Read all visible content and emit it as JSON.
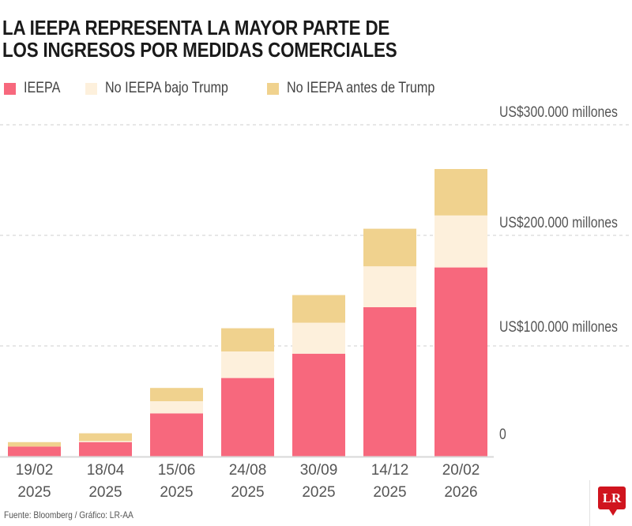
{
  "chart_data": {
    "type": "bar",
    "stacked": true,
    "title": "LA IEEPA REPRESENTA LA MAYOR PARTE DE LOS INGRESOS POR MEDIDAS COMERCIALES",
    "title_lines": [
      "LA IEEPA REPRESENTA LA MAYOR PARTE DE",
      "LOS INGRESOS POR MEDIDAS COMERCIALES"
    ],
    "categories": [
      [
        "19/02",
        "2025"
      ],
      [
        "18/04",
        "2025"
      ],
      [
        "15/06",
        "2025"
      ],
      [
        "24/08",
        "2025"
      ],
      [
        "30/09",
        "2025"
      ],
      [
        "14/12",
        "2025"
      ],
      [
        "20/02",
        "2026"
      ]
    ],
    "series": [
      {
        "name": "IEEPA",
        "color": "#f7687d",
        "values": [
          9000,
          13000,
          39000,
          71000,
          93000,
          135000,
          171000
        ]
      },
      {
        "name": "No IEEPA bajo Trump",
        "color": "#fdf0dc",
        "values": [
          0,
          1000,
          11000,
          24000,
          28000,
          37000,
          47000
        ]
      },
      {
        "name": "No IEEPA antes de Trump",
        "color": "#f0d28e",
        "values": [
          4000,
          7000,
          12000,
          21000,
          25000,
          34000,
          42000
        ]
      }
    ],
    "ylim": [
      0,
      300000
    ],
    "yticks": [
      {
        "value": 0,
        "label": "0"
      },
      {
        "value": 100000,
        "label": "US$100.000 millones"
      },
      {
        "value": 200000,
        "label": "US$200.000 millones"
      },
      {
        "value": 300000,
        "label": "US$300.000 millones"
      }
    ],
    "grid": true,
    "legend_position": "top-left",
    "xlabel": "",
    "ylabel": ""
  },
  "footer": {
    "source": "Fuente: Bloomberg / Gráfico: LR-AA"
  },
  "logo": {
    "text": "LR",
    "color": "#d0141e"
  }
}
